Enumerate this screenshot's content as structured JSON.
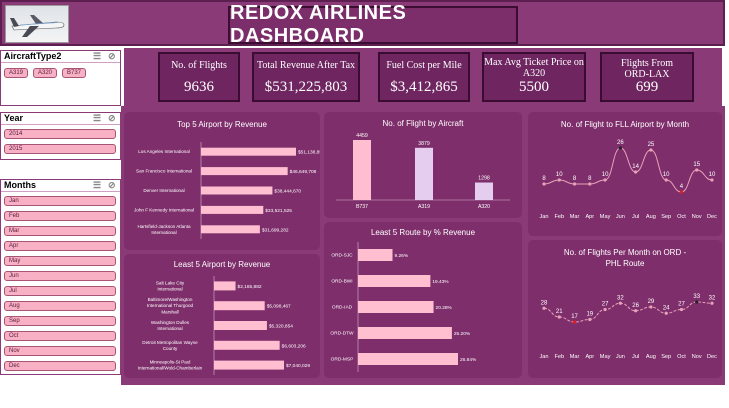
{
  "dashboard": {
    "title": "REDOX AIRLINES DASHBOARD"
  },
  "kpis": [
    {
      "label": "No. of Flights",
      "value": "9636"
    },
    {
      "label": "Total Revenue After Tax",
      "value": "$531,225,803"
    },
    {
      "label": "Fuel Cost per Mile",
      "value": "$3,412,865"
    },
    {
      "label": "Max Avg Ticket Price on A320",
      "value": "5500"
    },
    {
      "label": "Flights From ORD-LAX",
      "value": "699"
    }
  ],
  "slicers": {
    "aircraft": {
      "title": "AircraftType2",
      "items": [
        "A319",
        "A320",
        "B737"
      ]
    },
    "year": {
      "title": "Year",
      "items": [
        "2014",
        "2015"
      ]
    },
    "months": {
      "title": "Months",
      "items": [
        "Jan",
        "Feb",
        "Mar",
        "Apr",
        "May",
        "Jun",
        "Jul",
        "Aug",
        "Sep",
        "Oct",
        "Nov",
        "Dec"
      ]
    }
  },
  "colors": {
    "panel": "#7e2e6b",
    "banner": "#8b3a78",
    "bar": "#ffbfd0",
    "bar_alt": "#e5cdf0",
    "line": "#e5a3b8",
    "marker_low": "#e02020",
    "marker_high": "#222222"
  },
  "chart_data": [
    {
      "id": "top5",
      "type": "bar",
      "orientation": "horizontal",
      "title": "Top 5 Airport by Revenue",
      "categories": [
        "Los Angeles International",
        "San Francisco International",
        "Denver International",
        "John F Kennedy International",
        "Hartsfield-Jackson Atlanta International"
      ],
      "values": [
        51138857,
        46649708,
        38444670,
        33521525,
        31699282
      ],
      "labels": [
        "$51,138,857",
        "$46,649,708",
        "$38,444,670",
        "$33,521,525",
        "$31,699,282"
      ]
    },
    {
      "id": "least5",
      "type": "bar",
      "orientation": "horizontal",
      "title": "Least 5 Airport by Revenue",
      "categories": [
        "Salt Lake City International",
        "Baltimore/Washington International Thurgood Marshall",
        "Washington Dulles International",
        "Detroit Metropolitan Wayne County",
        "Minneapolis-St Paul International/Wold-Chamberlain"
      ],
      "values": [
        2165882,
        5098467,
        5320854,
        6603206,
        7040029
      ],
      "labels": [
        "$2,165,882",
        "$5,098,467",
        "$5,320,854",
        "$6,603,206",
        "$7,040,029"
      ]
    },
    {
      "id": "aircraft",
      "type": "bar",
      "orientation": "vertical",
      "title": "No. of Flight by Aircraft",
      "categories": [
        "B737",
        "A319",
        "A320"
      ],
      "values": [
        4459,
        3879,
        1298
      ]
    },
    {
      "id": "routes",
      "type": "bar",
      "orientation": "horizontal",
      "title": "Least 5 Route by % Revenue",
      "categories": [
        "ORD-SJC",
        "ORD-BWI",
        "ORD-IAD",
        "ORD-DTW",
        "ORD-MSP"
      ],
      "values": [
        9.26,
        19.43,
        20.28,
        25.2,
        26.84
      ],
      "labels": [
        "9.26%",
        "19.43%",
        "20.28%",
        "25.20%",
        "26.84%"
      ]
    },
    {
      "id": "fll",
      "type": "line",
      "title": "No. of Flight to FLL Airport by Month",
      "categories": [
        "Jan",
        "Feb",
        "Mar",
        "Apr",
        "May",
        "Jun",
        "Jul",
        "Aug",
        "Sep",
        "Oct",
        "Nov",
        "Dec"
      ],
      "values": [
        8,
        10,
        8,
        8,
        10,
        26,
        14,
        25,
        10,
        4,
        15,
        10
      ]
    },
    {
      "id": "phl",
      "type": "line",
      "title": "No. of Flights Per Month on ORD - PHL Route",
      "categories": [
        "Jan",
        "Feb",
        "Mar",
        "Apr",
        "May",
        "Jun",
        "Jul",
        "Aug",
        "Sep",
        "Oct",
        "Nov",
        "Dec"
      ],
      "values": [
        28,
        21,
        17,
        19,
        27,
        32,
        26,
        29,
        24,
        27,
        33,
        32
      ]
    }
  ]
}
